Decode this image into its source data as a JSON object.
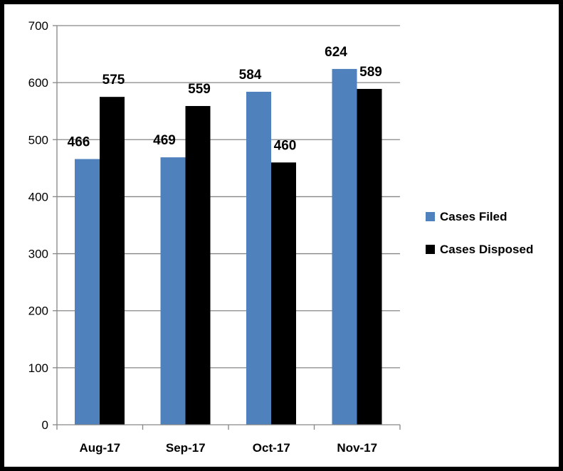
{
  "chart_data": {
    "type": "bar",
    "categories": [
      "Aug-17",
      "Sep-17",
      "Oct-17",
      "Nov-17"
    ],
    "series": [
      {
        "name": "Cases Filed",
        "values": [
          466,
          469,
          584,
          624
        ],
        "color": "#4F81BD"
      },
      {
        "name": "Cases Disposed",
        "values": [
          575,
          559,
          460,
          589
        ],
        "color": "#000000"
      }
    ],
    "ylim": [
      0,
      700
    ],
    "yticks": [
      0,
      100,
      200,
      300,
      400,
      500,
      600,
      700
    ],
    "grid": true,
    "legend_position": "right"
  }
}
